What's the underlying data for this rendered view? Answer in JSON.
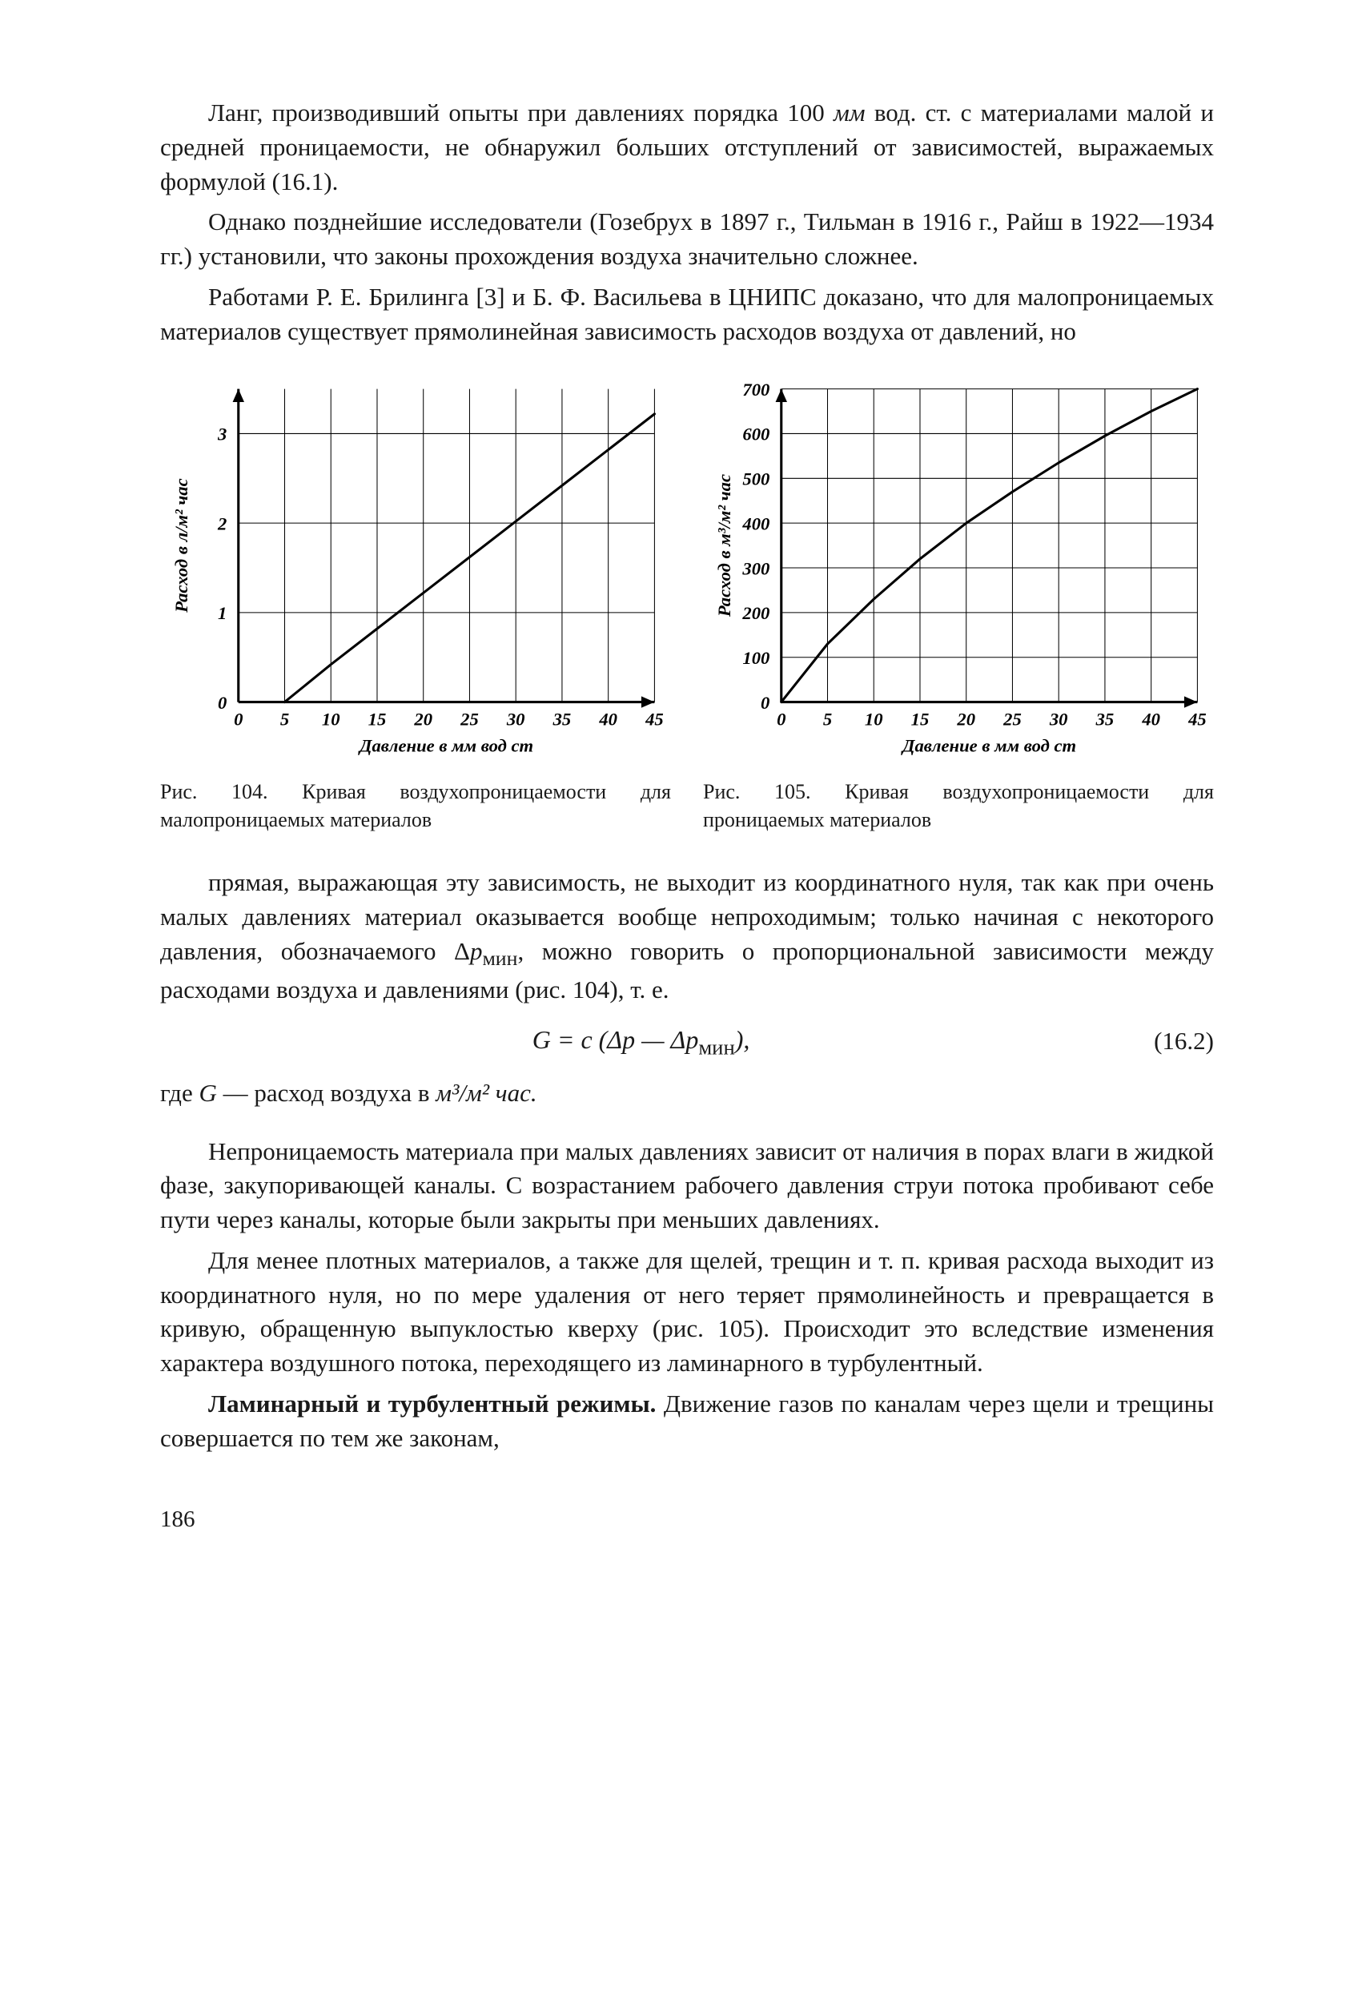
{
  "text": {
    "p1a": "Ланг, производивший опыты при давлениях порядка 100 ",
    "p1_mm": "мм",
    "p1b": " вод. ст. с материалами малой и средней проницаемости, не обнаружил больших отступлений от зависимостей, выражаемых формулой (16.1).",
    "p2": "Однако позднейшие исследователи (Гозебрух в 1897 г., Тильман в 1916 г., Райш в 1922—1934 гг.) установили, что законы прохождения воздуха значительно сложнее.",
    "p3": "Работами Р. Е. Брилинга [3] и Б. Ф. Васильева в ЦНИПС доказано, что для малопроницаемых материалов существует прямолинейная зависимость расходов воздуха от давлений, но",
    "p4a": "прямая, выражающая эту зависимость, не выходит из координатного нуля, так как при очень малых давлениях материал оказывается вообще непроходимым; только начиная с некоторого давления, обозначаемого Δ",
    "p4_pmin": "p",
    "p4_minsub": "мин",
    "p4b": ", можно говорить о пропорциональной зависимости между расходами воздуха и давлениями (рис. 104), т. е.",
    "eq_lhs": "G = c (Δp — Δp",
    "eq_sub": "мин",
    "eq_rhs": "),",
    "eq_num": "(16.2)",
    "where_a": "где  ",
    "where_G": "G",
    "where_b": " — расход воздуха в  ",
    "where_units": "м³/м² час.",
    "p5": "Непроницаемость материала при малых давлениях зависит от наличия в порах влаги в жидкой фазе, закупоривающей каналы. С возрастанием рабочего давления струи потока пробивают себе пути через каналы, которые были закрыты при меньших давлениях.",
    "p6": "Для менее плотных материалов, а также для щелей, трещин и т. п. кривая расхода выходит из координатного нуля, но по мере удаления от него теряет прямолинейность и превращается в кривую, обращенную выпуклостью кверху (рис. 105). Происходит это вследствие изменения характера воздушного потока, переходящего из ламинарного в турбулентный.",
    "p7_bold": "Ламинарный и турбулентный режимы.",
    "p7_rest": " Движение газов по каналам через щели и трещины совершается по тем же законам,",
    "pagenum": "186"
  },
  "fig104": {
    "caption": "Рис. 104. Кривая воздухопроницаемости для малопроницаемых материалов",
    "type": "line",
    "xlabel": "Давление в мм вод ст",
    "ylabel": "Расход в л/м² час",
    "xlim": [
      0,
      45
    ],
    "ylim": [
      0,
      3.5
    ],
    "xticks": [
      0,
      5,
      10,
      15,
      20,
      25,
      30,
      35,
      40,
      45
    ],
    "yticks": [
      0,
      1,
      2,
      3
    ],
    "xtick_labels": [
      "0",
      "5",
      "10",
      "15",
      "20",
      "25",
      "30",
      "35",
      "40",
      "45"
    ],
    "ytick_labels": [
      "0",
      "1",
      "2",
      "3"
    ],
    "data_x": [
      5,
      10,
      15,
      20,
      25,
      30,
      35,
      40,
      45
    ],
    "data_y": [
      0,
      0.42,
      0.82,
      1.22,
      1.62,
      2.02,
      2.42,
      2.82,
      3.22
    ],
    "line_color": "#000000",
    "grid_color": "#000000",
    "background_color": "#ffffff",
    "line_width": 3,
    "grid_width": 1,
    "axis_width": 3,
    "label_fontsize": 22,
    "tick_fontsize": 22
  },
  "fig105": {
    "caption": "Рис. 105. Кривая воздухопроницаемости для проницаемых материалов",
    "type": "line",
    "xlabel": "Давление в мм вод ст",
    "ylabel": "Расход в м³/м² час",
    "xlim": [
      0,
      45
    ],
    "ylim": [
      0,
      700
    ],
    "xticks": [
      0,
      5,
      10,
      15,
      20,
      25,
      30,
      35,
      40,
      45
    ],
    "yticks": [
      0,
      100,
      200,
      300,
      400,
      500,
      600,
      700
    ],
    "xtick_labels": [
      "0",
      "5",
      "10",
      "15",
      "20",
      "25",
      "30",
      "35",
      "40",
      "45"
    ],
    "ytick_labels": [
      "0",
      "100",
      "200",
      "300",
      "400",
      "500",
      "600",
      "700"
    ],
    "data_x": [
      0,
      5,
      10,
      15,
      20,
      25,
      30,
      35,
      40,
      45
    ],
    "data_y": [
      0,
      130,
      230,
      320,
      400,
      470,
      535,
      595,
      650,
      700
    ],
    "line_color": "#000000",
    "grid_color": "#000000",
    "background_color": "#ffffff",
    "line_width": 3,
    "grid_width": 1,
    "axis_width": 3,
    "label_fontsize": 22,
    "tick_fontsize": 22
  }
}
